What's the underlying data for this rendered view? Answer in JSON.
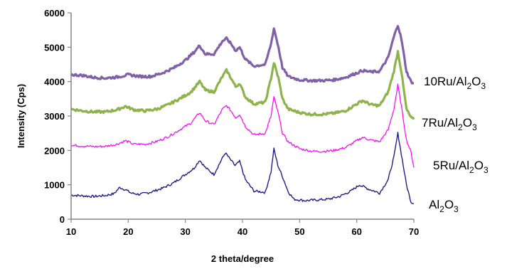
{
  "chart_data": {
    "type": "line",
    "xlabel": "2 theta/degree",
    "ylabel": "Intensity (Cps)",
    "xlim": [
      10,
      70
    ],
    "ylim": [
      0,
      6000
    ],
    "x_ticks": [
      "10",
      "20",
      "30",
      "40",
      "50",
      "60",
      "70"
    ],
    "y_ticks": [
      "0",
      "1000",
      "2000",
      "3000",
      "4000",
      "5000",
      "6000"
    ],
    "grid": false,
    "legend": "none",
    "label_placement": "right of each curve",
    "series": [
      {
        "name": "Al2O3",
        "label_main": "Al",
        "label_sub1": "2",
        "label_mid": "O",
        "label_sub2": "3",
        "color": "#1f1f8c",
        "x": [
          10,
          12,
          14,
          16,
          17.5,
          18.5,
          19.5,
          20.5,
          22,
          24,
          26,
          28,
          30,
          31.5,
          32.5,
          33.5,
          35,
          36.3,
          37,
          37.8,
          38.7,
          39.5,
          40.5,
          42,
          44,
          45,
          45.5,
          46.2,
          47,
          48,
          49,
          51,
          53,
          55,
          57,
          59,
          60.5,
          62,
          64,
          65.5,
          66.5,
          67.2,
          67.8,
          68.7,
          69.5,
          70
        ],
        "y": [
          700,
          680,
          660,
          690,
          740,
          920,
          860,
          760,
          720,
          790,
          900,
          1060,
          1300,
          1480,
          1720,
          1500,
          1300,
          1720,
          1930,
          1750,
          1560,
          1680,
          1150,
          820,
          780,
          1380,
          2040,
          1560,
          1240,
          800,
          580,
          540,
          560,
          580,
          660,
          820,
          1000,
          880,
          760,
          1150,
          1800,
          2500,
          1900,
          1000,
          500,
          450
        ]
      },
      {
        "name": "5Ru/Al2O3",
        "label_main": "5Ru/Al",
        "label_sub1": "2",
        "label_mid": "O",
        "label_sub2": "3",
        "color": "#ff00ff",
        "x": [
          10,
          12,
          14,
          16,
          18,
          19.5,
          21,
          23,
          25,
          27,
          29,
          31,
          32.5,
          33.5,
          35,
          36.5,
          37.2,
          38,
          38.8,
          39.5,
          40.5,
          42,
          44,
          45,
          45.5,
          46.3,
          47,
          48,
          50,
          52,
          54,
          56,
          58,
          60,
          61,
          62.5,
          64,
          65.5,
          66.5,
          67.2,
          67.8,
          68.7,
          69.5,
          70
        ],
        "y": [
          2150,
          2130,
          2110,
          2120,
          2180,
          2280,
          2180,
          2180,
          2260,
          2400,
          2600,
          2800,
          3100,
          2860,
          2750,
          3200,
          3300,
          3150,
          2950,
          3050,
          2700,
          2450,
          2500,
          3000,
          3550,
          3050,
          2500,
          2250,
          2050,
          1980,
          1970,
          2000,
          2080,
          2280,
          2380,
          2300,
          2250,
          2600,
          3200,
          3900,
          3300,
          2300,
          1950,
          1500
        ]
      },
      {
        "name": "7Ru/Al2O3",
        "label_main": "7Ru/Al",
        "label_sub1": "2",
        "label_mid": "O",
        "label_sub2": "3",
        "color": "#8db34a",
        "x": [
          10,
          12,
          14,
          16,
          18,
          19.5,
          21,
          23,
          25,
          27,
          29,
          31,
          32.5,
          33.5,
          35,
          36.5,
          37.2,
          38,
          38.8,
          39.5,
          40.5,
          42,
          44,
          45,
          45.5,
          46.3,
          47,
          48,
          50,
          52,
          54,
          56,
          58,
          60,
          61,
          62.5,
          64,
          65.5,
          66.5,
          67.2,
          67.8,
          68.7,
          69.5,
          70
        ],
        "y": [
          3200,
          3150,
          3120,
          3120,
          3180,
          3280,
          3180,
          3150,
          3200,
          3330,
          3500,
          3700,
          4000,
          3750,
          3700,
          4150,
          4330,
          4100,
          3850,
          3950,
          3550,
          3350,
          3400,
          4100,
          4550,
          4100,
          3500,
          3200,
          3100,
          3050,
          3050,
          3080,
          3150,
          3350,
          3450,
          3330,
          3300,
          3700,
          4300,
          4880,
          4300,
          3200,
          2950,
          2900
        ]
      },
      {
        "name": "10Ru/Al2O3",
        "label_main": "10Ru/Al",
        "label_sub1": "2",
        "label_mid": "O",
        "label_sub2": "3",
        "color": "#8060a8",
        "x": [
          10,
          12,
          14,
          16,
          18,
          20,
          22,
          24,
          26,
          28,
          30,
          31.5,
          32.5,
          33.5,
          35,
          36.5,
          37.2,
          38,
          38.8,
          39.5,
          40.5,
          42,
          44,
          45,
          45.5,
          46.3,
          47,
          48,
          50,
          52,
          54,
          56,
          58,
          60,
          61,
          62.5,
          64,
          65.5,
          66.5,
          67.2,
          67.8,
          68.7,
          69.5,
          70
        ],
        "y": [
          4200,
          4180,
          4120,
          4100,
          4130,
          4200,
          4150,
          4150,
          4250,
          4400,
          4620,
          4850,
          5050,
          4800,
          4800,
          5180,
          5250,
          5100,
          4900,
          5000,
          4650,
          4450,
          4500,
          5100,
          5550,
          5000,
          4400,
          4150,
          4050,
          4030,
          4030,
          4050,
          4120,
          4250,
          4320,
          4280,
          4300,
          4700,
          5300,
          5650,
          5250,
          4300,
          4000,
          3950
        ]
      }
    ]
  }
}
